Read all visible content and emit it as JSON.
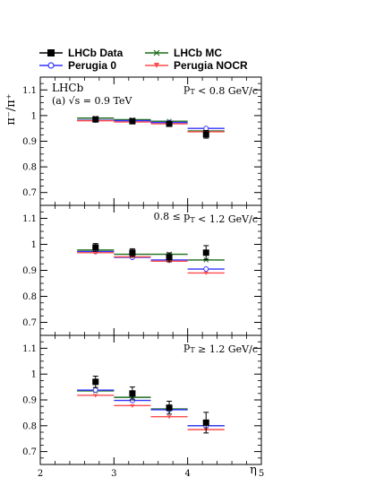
{
  "legend": [
    {
      "label": "LHCb Data",
      "color": "#000000",
      "marker": "square"
    },
    {
      "label": "LHCb MC",
      "color": "#1a6b1a",
      "marker": "cross"
    },
    {
      "label": "Perugia 0",
      "color": "#3333ff",
      "marker": "circle"
    },
    {
      "label": "Perugia NOCR",
      "color": "#ff4d4d",
      "marker": "triangle"
    }
  ],
  "chart_data": {
    "type": "scatter",
    "ylabel": "π⁻/π⁺",
    "xlabel": "η",
    "x_ticks": [
      "2",
      "3",
      "4",
      "5"
    ],
    "xlim": [
      2,
      5
    ],
    "experiment_label": "LHCb",
    "energy_label": "(a) √s = 0.9 TeV",
    "bins": [
      [
        2.5,
        3.0
      ],
      [
        3.0,
        3.5
      ],
      [
        3.5,
        4.0
      ],
      [
        4.0,
        4.5
      ]
    ],
    "panels": [
      {
        "label": "p_T < 0.8 GeV/c",
        "ylim": [
          0.65,
          1.15
        ],
        "y_ticks": [
          "0.7",
          "0.8",
          "0.9",
          "1",
          "1.1"
        ],
        "series": [
          {
            "name": "LHCb Data",
            "values": [
              0.985,
              0.978,
              0.968,
              0.927
            ],
            "errors": [
              0.007,
              0.008,
              0.009,
              0.015
            ]
          },
          {
            "name": "LHCb MC",
            "values": [
              0.99,
              0.984,
              0.978,
              0.94
            ]
          },
          {
            "name": "Perugia 0",
            "values": [
              0.982,
              0.98,
              0.973,
              0.95
            ]
          },
          {
            "name": "Perugia NOCR",
            "values": [
              0.98,
              0.975,
              0.968,
              0.937
            ]
          }
        ]
      },
      {
        "label": "0.8 ≤ p_T < 1.2 GeV/c",
        "ylim": [
          0.65,
          1.15
        ],
        "y_ticks": [
          "0.7",
          "0.8",
          "0.9",
          "1",
          "1.1"
        ],
        "series": [
          {
            "name": "LHCb Data",
            "values": [
              0.988,
              0.968,
              0.95,
              0.968
            ],
            "errors": [
              0.015,
              0.015,
              0.017,
              0.027
            ]
          },
          {
            "name": "LHCb MC",
            "values": [
              0.978,
              0.962,
              0.962,
              0.94
            ]
          },
          {
            "name": "Perugia 0",
            "values": [
              0.972,
              0.95,
              0.94,
              0.905
            ]
          },
          {
            "name": "Perugia NOCR",
            "values": [
              0.968,
              0.952,
              0.935,
              0.89
            ]
          }
        ]
      },
      {
        "label": "p_T ≥ 1.2 GeV/c",
        "ylim": [
          0.65,
          1.15
        ],
        "y_ticks": [
          "0.7",
          "0.8",
          "0.9",
          "1",
          "1.1"
        ],
        "series": [
          {
            "name": "LHCb Data",
            "values": [
              0.97,
              0.925,
              0.87,
              0.812
            ],
            "errors": [
              0.022,
              0.025,
              0.025,
              0.04
            ]
          },
          {
            "name": "LHCb MC",
            "values": [
              0.935,
              0.91,
              0.865,
              0.8
            ]
          },
          {
            "name": "Perugia 0",
            "values": [
              0.938,
              0.898,
              0.862,
              0.8
            ]
          },
          {
            "name": "Perugia NOCR",
            "values": [
              0.918,
              0.878,
              0.835,
              0.785
            ]
          }
        ]
      }
    ]
  }
}
